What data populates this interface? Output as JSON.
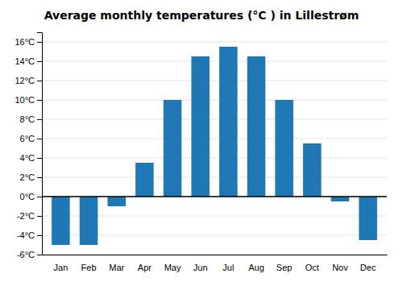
{
  "chart_data": {
    "type": "bar",
    "title": "Average monthly temperatures (°C ) in Lillestrøm",
    "categories": [
      "Jan",
      "Feb",
      "Mar",
      "Apr",
      "May",
      "Jun",
      "Jul",
      "Aug",
      "Sep",
      "Oct",
      "Nov",
      "Dec"
    ],
    "values": [
      -5.0,
      -5.0,
      -1.0,
      3.5,
      10.0,
      14.5,
      15.5,
      14.5,
      10.0,
      5.5,
      -0.5,
      -4.5
    ],
    "ylim": [
      -6,
      17
    ],
    "yticks": [
      {
        "value": -6,
        "label": "-6°C"
      },
      {
        "value": -4,
        "label": "-4°C"
      },
      {
        "value": -2,
        "label": "-2°C"
      },
      {
        "value": 0,
        "label": "0°C"
      },
      {
        "value": 2,
        "label": "2°C"
      },
      {
        "value": 4,
        "label": "4°C"
      },
      {
        "value": 6,
        "label": "6°C"
      },
      {
        "value": 8,
        "label": "8°C"
      },
      {
        "value": 10,
        "label": "10°C"
      },
      {
        "value": 12,
        "label": "12°C"
      },
      {
        "value": 14,
        "label": "14°C"
      },
      {
        "value": 16,
        "label": "16°C"
      }
    ],
    "grid": true
  }
}
